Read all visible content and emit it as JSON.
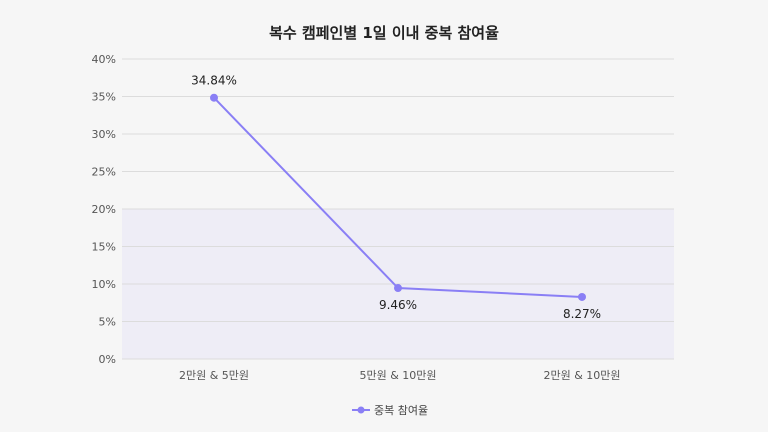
{
  "chart_data": {
    "type": "line",
    "title": "복수 캠페인별 1일 이내 중복 참여율",
    "categories": [
      "2만원 & 5만원",
      "5만원 & 10만원",
      "2만원 & 10만원"
    ],
    "series": [
      {
        "name": "중복 참여율",
        "values": [
          34.84,
          9.46,
          8.27
        ],
        "labels": [
          "34.84%",
          "9.46%",
          "8.27%"
        ],
        "color": "#8a7ff5"
      }
    ],
    "ylim": [
      0,
      40
    ],
    "yticks": [
      "0%",
      "5%",
      "10%",
      "15%",
      "20%",
      "25%",
      "30%",
      "35%",
      "40%"
    ],
    "xlabel": "",
    "ylabel": "",
    "grid": true,
    "shaded_band": [
      0,
      20
    ],
    "legend_position": "bottom"
  }
}
